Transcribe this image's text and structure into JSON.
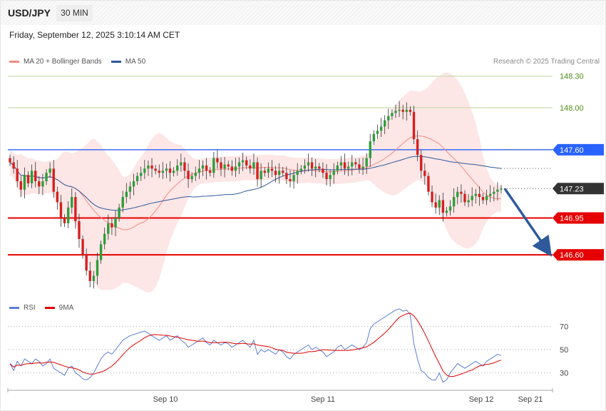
{
  "header": {
    "symbol": "USD/JPY",
    "timeframe": "30 MIN",
    "datetime": "Friday, September 12, 2025 3:10:14 AM CET"
  },
  "legend": {
    "price": [
      {
        "label": "MA 20 + Bollinger Bands",
        "color": "#f28b82"
      },
      {
        "label": "MA 50",
        "color": "#2e5a9c"
      }
    ],
    "rsi": [
      {
        "label": "RSI",
        "color": "#5b7fd6"
      },
      {
        "label": "9MA",
        "color": "#e00000"
      }
    ]
  },
  "credit": "Research © 2025 Trading Central",
  "colors": {
    "bull": "#2e9e3a",
    "bear": "#d62020",
    "band": "#fde2e2",
    "ma20": "#f28b82",
    "ma50": "#2e5a9c",
    "resistance": "#c9dcae",
    "pivot": "#2962ff",
    "support": "#e60000",
    "current": "#333333",
    "forecast_arrow": "#2e5a9c"
  },
  "chart_data": [
    {
      "type": "candlestick",
      "ylim": [
        146.2,
        148.4
      ],
      "x_labels": [
        "Sep 10",
        "Sep 11",
        "Sep 12",
        "Sep 21"
      ],
      "levels": [
        {
          "value": 148.3,
          "label": "148.30",
          "kind": "resistance"
        },
        {
          "value": 148.0,
          "label": "148.00",
          "kind": "resistance"
        },
        {
          "value": 147.6,
          "label": "147.60",
          "kind": "pivot"
        },
        {
          "value": 147.23,
          "label": "147.23",
          "kind": "current"
        },
        {
          "value": 146.95,
          "label": "146.95",
          "kind": "support"
        },
        {
          "value": 146.6,
          "label": "146.60",
          "kind": "support"
        }
      ],
      "forecast": {
        "from": 147.23,
        "to": 146.6
      },
      "series": [
        {
          "name": "Price",
          "close": [
            147.48,
            147.42,
            147.3,
            147.22,
            147.36,
            147.28,
            147.4,
            147.3,
            147.25,
            147.3,
            147.38,
            147.42,
            147.2,
            147.1,
            146.95,
            146.9,
            147.05,
            147.15,
            146.92,
            146.75,
            146.6,
            146.45,
            146.35,
            146.4,
            146.55,
            146.7,
            146.8,
            146.9,
            146.86,
            146.95,
            147.05,
            147.15,
            147.2,
            147.25,
            147.3,
            147.35,
            147.38,
            147.42,
            147.45,
            147.42,
            147.4,
            147.38,
            147.4,
            147.42,
            147.38,
            147.4,
            147.45,
            147.48,
            147.4,
            147.32,
            147.35,
            147.38,
            147.42,
            147.45,
            147.4,
            147.38,
            147.52,
            147.48,
            147.42,
            147.46,
            147.44,
            147.4,
            147.44,
            147.48,
            147.5,
            147.45,
            147.42,
            147.48,
            147.32,
            147.4,
            147.38,
            147.42,
            147.4,
            147.36,
            147.4,
            147.38,
            147.32,
            147.3,
            147.36,
            147.4,
            147.42,
            147.45,
            147.48,
            147.42,
            147.44,
            147.42,
            147.38,
            147.32,
            147.36,
            147.4,
            147.45,
            147.48,
            147.42,
            147.44,
            147.48,
            147.46,
            147.42,
            147.44,
            147.52,
            147.68,
            147.75,
            147.78,
            147.82,
            147.88,
            147.92,
            147.95,
            147.97,
            147.98,
            147.96,
            147.98,
            147.96,
            147.7,
            147.55,
            147.4,
            147.35,
            147.2,
            147.1,
            147.05,
            147.12,
            147.0,
            147.02,
            147.06,
            147.15,
            147.2,
            147.18,
            147.1,
            147.12,
            147.16,
            147.18,
            147.15,
            147.12,
            147.16,
            147.18,
            147.2,
            147.22,
            147.23
          ],
          "open": [
            147.52,
            147.48,
            147.42,
            147.3,
            147.22,
            147.36,
            147.28,
            147.4,
            147.3,
            147.25,
            147.3,
            147.38,
            147.42,
            147.2,
            147.1,
            146.95,
            146.9,
            147.05,
            147.15,
            146.92,
            146.75,
            146.6,
            146.45,
            146.35,
            146.4,
            146.55,
            146.7,
            146.8,
            146.9,
            146.86,
            146.95,
            147.05,
            147.15,
            147.2,
            147.25,
            147.3,
            147.35,
            147.38,
            147.42,
            147.45,
            147.42,
            147.4,
            147.38,
            147.4,
            147.42,
            147.38,
            147.4,
            147.45,
            147.48,
            147.4,
            147.32,
            147.35,
            147.38,
            147.42,
            147.45,
            147.4,
            147.38,
            147.52,
            147.48,
            147.42,
            147.46,
            147.44,
            147.4,
            147.44,
            147.48,
            147.5,
            147.45,
            147.42,
            147.48,
            147.32,
            147.4,
            147.38,
            147.42,
            147.4,
            147.36,
            147.4,
            147.38,
            147.32,
            147.3,
            147.36,
            147.4,
            147.42,
            147.45,
            147.48,
            147.42,
            147.44,
            147.42,
            147.38,
            147.32,
            147.36,
            147.4,
            147.45,
            147.48,
            147.42,
            147.44,
            147.48,
            147.46,
            147.42,
            147.44,
            147.52,
            147.68,
            147.75,
            147.78,
            147.82,
            147.88,
            147.92,
            147.95,
            147.97,
            147.98,
            147.96,
            147.98,
            147.96,
            147.7,
            147.55,
            147.4,
            147.35,
            147.2,
            147.1,
            147.05,
            147.12,
            147.0,
            147.02,
            147.06,
            147.15,
            147.2,
            147.18,
            147.1,
            147.12,
            147.16,
            147.18,
            147.15,
            147.12,
            147.16,
            147.18,
            147.2,
            147.22
          ]
        },
        {
          "name": "MA 20",
          "values_from": "Price",
          "period": 20
        },
        {
          "name": "MA 50",
          "values_from": "Price",
          "period": 50
        }
      ]
    },
    {
      "type": "line",
      "ylim": [
        20,
        80
      ],
      "y_ticks": [
        70,
        50,
        30
      ],
      "series": [
        {
          "name": "RSI",
          "values": [
            38,
            32,
            40,
            36,
            42,
            40,
            38,
            42,
            40,
            36,
            38,
            42,
            34,
            32,
            30,
            28,
            34,
            36,
            30,
            28,
            25,
            24,
            26,
            30,
            36,
            42,
            46,
            48,
            46,
            50,
            54,
            58,
            60,
            62,
            63,
            64,
            65,
            66,
            64,
            62,
            60,
            58,
            60,
            62,
            58,
            60,
            62,
            58,
            56,
            52,
            54,
            56,
            58,
            60,
            56,
            54,
            58,
            56,
            54,
            56,
            55,
            52,
            54,
            56,
            58,
            55,
            52,
            58,
            46,
            50,
            48,
            50,
            48,
            46,
            50,
            48,
            44,
            42,
            46,
            48,
            50,
            52,
            54,
            50,
            52,
            50,
            48,
            44,
            46,
            48,
            52,
            54,
            50,
            52,
            54,
            52,
            50,
            52,
            56,
            68,
            72,
            74,
            76,
            78,
            80,
            82,
            84,
            85,
            83,
            84,
            80,
            55,
            42,
            32,
            30,
            26,
            24,
            24,
            30,
            22,
            24,
            30,
            34,
            38,
            36,
            34,
            36,
            38,
            40,
            38,
            36,
            40,
            42,
            44,
            46,
            45
          ]
        },
        {
          "name": "9MA",
          "values_from": "RSI",
          "period": 9
        }
      ]
    }
  ]
}
